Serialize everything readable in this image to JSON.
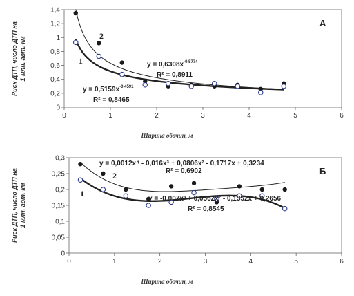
{
  "chart_data": [
    {
      "type": "scatter",
      "panel_label": "А",
      "ylabel_lines": [
        "Риск ДТП, число ДТП на",
        "1 млн. авт.-км"
      ],
      "xlabel": "Ширина обочин, м",
      "xlim": [
        0,
        6
      ],
      "ylim": [
        0,
        1.4
      ],
      "x_ticks": [
        "0",
        "1",
        "2",
        "3",
        "4",
        "5",
        "6"
      ],
      "y_ticks": [
        "0",
        "0,2",
        "0,4",
        "0,6",
        "0,8",
        "1",
        "1,2",
        "1,4"
      ],
      "grid": false,
      "series": [
        {
          "name": "2",
          "marker": "filled",
          "x": [
            0.25,
            0.75,
            1.25,
            1.75,
            2.25,
            2.75,
            3.25,
            3.75,
            4.25,
            4.75
          ],
          "y": [
            1.35,
            0.92,
            0.64,
            0.37,
            0.3,
            0.32,
            0.3,
            0.32,
            0.26,
            0.34
          ],
          "trend": {
            "type": "power",
            "a": 0.6308,
            "b": -0.5774,
            "x_range": [
              0.25,
              4.75
            ]
          },
          "equation": {
            "text": "y = 0,6308x",
            "exp": "-0,5774",
            "r2": "R² = 0,8911"
          }
        },
        {
          "name": "1",
          "marker": "open",
          "x": [
            0.25,
            0.75,
            1.25,
            1.75,
            2.25,
            2.75,
            3.25,
            3.75,
            4.25,
            4.75
          ],
          "y": [
            0.93,
            0.73,
            0.47,
            0.32,
            0.34,
            0.3,
            0.34,
            0.3,
            0.21,
            0.3
          ],
          "trend": {
            "type": "power",
            "a": 0.5159,
            "b": -0.4591,
            "x_range": [
              0.25,
              4.75
            ]
          },
          "equation": {
            "text": "y = 0,5159x",
            "exp": "-0,4591",
            "r2": "R² = 0,8465"
          }
        }
      ]
    },
    {
      "type": "scatter",
      "panel_label": "Б",
      "ylabel_lines": [
        "Риск ДТП, число ДТП на",
        "1 млн. авт.-км"
      ],
      "xlabel": "Ширина обочин, м",
      "xlim": [
        0,
        6
      ],
      "ylim": [
        0,
        0.3
      ],
      "x_ticks": [
        "0",
        "1",
        "2",
        "3",
        "4",
        "5",
        "6"
      ],
      "y_ticks": [
        "0",
        "0,05",
        "0,1",
        "0,15",
        "0,2",
        "0,25",
        "0,3"
      ],
      "grid": false,
      "series": [
        {
          "name": "2",
          "marker": "filled",
          "x": [
            0.25,
            0.75,
            1.25,
            1.75,
            2.25,
            2.75,
            3.25,
            3.75,
            4.25,
            4.75
          ],
          "y": [
            0.28,
            0.25,
            0.2,
            0.17,
            0.21,
            0.22,
            0.16,
            0.21,
            0.2,
            0.2
          ],
          "trend": {
            "type": "poly",
            "coeffs": [
              0.3234,
              -0.1717,
              0.0806,
              -0.016,
              0.0012
            ],
            "x_range": [
              0.25,
              4.75
            ]
          },
          "equation": {
            "text": "y = 0,0012x⁴ - 0,016x³ + 0,0806x² - 0,1717x + 0,3234",
            "r2": "R² = 0,6902"
          }
        },
        {
          "name": "1",
          "marker": "open",
          "x": [
            0.25,
            0.75,
            1.25,
            1.75,
            2.25,
            2.75,
            3.25,
            3.75,
            4.25,
            4.75
          ],
          "y": [
            0.23,
            0.2,
            0.18,
            0.15,
            0.16,
            0.19,
            0.17,
            0.18,
            0.18,
            0.14
          ],
          "trend": {
            "type": "poly",
            "coeffs": [
              0.2656,
              -0.1352,
              0.0562,
              -0.007
            ],
            "x_range": [
              0.25,
              4.75
            ]
          },
          "equation": {
            "text": "y = -0,007x³ + 0,0562x² - 0,1352x + 0,2656",
            "r2": "R² = 0,8545"
          }
        }
      ]
    }
  ]
}
